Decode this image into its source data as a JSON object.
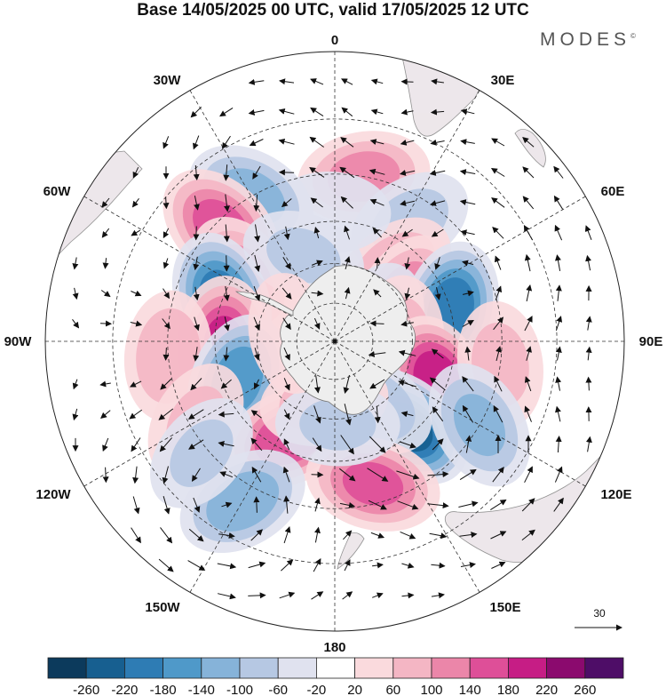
{
  "title": "Base 14/05/2025 00 UTC, valid 17/05/2025 12 UTC",
  "brand": "MODES",
  "brand_mark": "©",
  "longitude_labels": {
    "top": "0",
    "bottom": "180",
    "left": "90W",
    "right": "90E",
    "w30": "30W",
    "w60": "60W",
    "w120": "120W",
    "w150": "150W",
    "e30": "30E",
    "e60": "60E",
    "e120": "120E",
    "e150": "150E"
  },
  "reference_vector": {
    "label": "30"
  },
  "colorbar": {
    "labels": [
      "-260",
      "-220",
      "-180",
      "-140",
      "-100",
      "-60",
      "-20",
      "20",
      "60",
      "100",
      "140",
      "180",
      "220",
      "260"
    ],
    "colors": [
      "#0c3a5c",
      "#175f90",
      "#2e7cb4",
      "#4f99c9",
      "#86b3d9",
      "#b6c8e3",
      "#e0e2ef",
      "#ffffff",
      "#fadadd",
      "#f4b6c4",
      "#eb86a9",
      "#de4f98",
      "#c61d85",
      "#8b0a6e",
      "#4e0d67"
    ]
  },
  "map_style": {
    "land_color": "#eeeeee",
    "coast_color": "#777777",
    "grid_color": "#333333",
    "arrow_color": "#111111"
  },
  "anomaly_centers": [
    {
      "lon": 10,
      "lat": -30,
      "value": 110
    },
    {
      "lon": 32,
      "lat": -38,
      "value": -70
    },
    {
      "lon": 40,
      "lat": -55,
      "value": 90
    },
    {
      "lon": -2,
      "lat": -42,
      "value": -50
    },
    {
      "lon": -30,
      "lat": -30,
      "value": -110
    },
    {
      "lon": -45,
      "lat": -32,
      "value": 150
    },
    {
      "lon": -55,
      "lat": -48,
      "value": 110
    },
    {
      "lon": -20,
      "lat": -55,
      "value": -60
    },
    {
      "lon": -70,
      "lat": -45,
      "value": -190
    },
    {
      "lon": 58,
      "lat": -58,
      "value": 120
    },
    {
      "lon": 75,
      "lat": -45,
      "value": -200
    },
    {
      "lon": 70,
      "lat": -72,
      "value": -80
    },
    {
      "lon": 88,
      "lat": -64,
      "value": 70
    },
    {
      "lon": -92,
      "lat": -48,
      "value": 180
    },
    {
      "lon": -95,
      "lat": -30,
      "value": 90
    },
    {
      "lon": -112,
      "lat": -50,
      "value": -160
    },
    {
      "lon": -120,
      "lat": -32,
      "value": 60
    },
    {
      "lon": 112,
      "lat": -48,
      "value": 200
    },
    {
      "lon": 98,
      "lat": -30,
      "value": 70
    },
    {
      "lon": 140,
      "lat": -48,
      "value": -230
    },
    {
      "lon": 120,
      "lat": -30,
      "value": -100
    },
    {
      "lon": 150,
      "lat": -62,
      "value": -90
    },
    {
      "lon": -155,
      "lat": -50,
      "value": 170
    },
    {
      "lon": -170,
      "lat": -66,
      "value": 80
    },
    {
      "lon": -150,
      "lat": -25,
      "value": -120
    },
    {
      "lon": 165,
      "lat": -36,
      "value": 140
    },
    {
      "lon": 178,
      "lat": -58,
      "value": -60
    },
    {
      "lon": -130,
      "lat": -28,
      "value": -60
    },
    {
      "lon": -80,
      "lat": -72,
      "value": 50
    }
  ]
}
